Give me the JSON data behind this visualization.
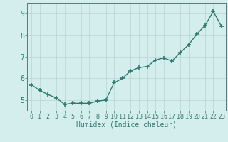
{
  "x": [
    0,
    1,
    2,
    3,
    4,
    5,
    6,
    7,
    8,
    9,
    10,
    11,
    12,
    13,
    14,
    15,
    16,
    17,
    18,
    19,
    20,
    21,
    22,
    23
  ],
  "y": [
    5.7,
    5.45,
    5.25,
    5.1,
    4.8,
    4.85,
    4.85,
    4.85,
    4.95,
    5.0,
    5.8,
    6.0,
    6.35,
    6.5,
    6.55,
    6.85,
    6.95,
    6.8,
    7.2,
    7.55,
    8.05,
    8.45,
    9.1,
    8.4
  ],
  "line_color": "#2e7b6e",
  "marker": "+",
  "markersize": 4,
  "markeredgewidth": 1.2,
  "linewidth": 1.0,
  "xlabel": "Humidex (Indice chaleur)",
  "xlim": [
    -0.5,
    23.5
  ],
  "ylim": [
    4.5,
    9.5
  ],
  "yticks": [
    5,
    6,
    7,
    8,
    9
  ],
  "xticks": [
    0,
    1,
    2,
    3,
    4,
    5,
    6,
    7,
    8,
    9,
    10,
    11,
    12,
    13,
    14,
    15,
    16,
    17,
    18,
    19,
    20,
    21,
    22,
    23
  ],
  "background_color": "#d4eeee",
  "grid_color": "#b8d4d4",
  "xlabel_color": "#2e7b6e",
  "tick_color": "#2e7b6e",
  "axis_color": "#5a7a7a",
  "xlabel_fontsize": 7,
  "tick_fontsize": 6,
  "ylabel_fontsize": 6
}
